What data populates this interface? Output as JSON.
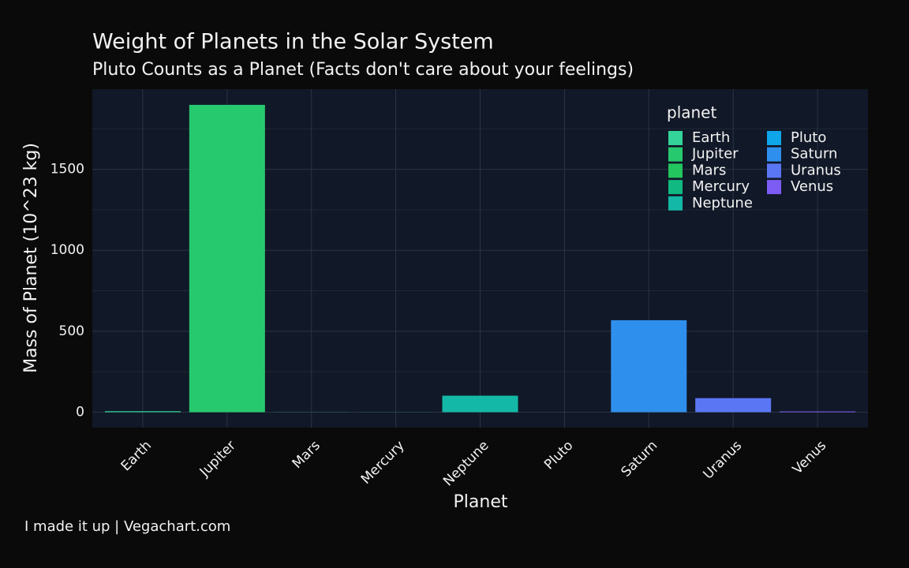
{
  "chart_data": {
    "type": "bar",
    "title": "Weight of Planets in the Solar System",
    "subtitle": "Pluto Counts as a Planet (Facts don't care about your feelings)",
    "x_label": "Planet",
    "y_label": "Mass of Planet (10^23 kg)",
    "footer": "I made it up | Vegachart.com",
    "legend_title": "planet",
    "categories": [
      "Earth",
      "Jupiter",
      "Mars",
      "Mercury",
      "Neptune",
      "Pluto",
      "Saturn",
      "Uranus",
      "Venus"
    ],
    "values": [
      5.97,
      1898,
      0.642,
      0.33,
      102,
      0.0146,
      568,
      86.8,
      4.87
    ],
    "colors": [
      "#34d399",
      "#27c96f",
      "#22c55e",
      "#10b981",
      "#14b8a6",
      "#0ea5e9",
      "#2f8fec",
      "#5b76f5",
      "#7c5cf5"
    ],
    "ylim": [
      -95,
      1995
    ],
    "yticks": [
      0,
      500,
      1000,
      1500
    ],
    "minor_yticks": [
      250,
      750,
      1250,
      1750
    ],
    "grid": true
  }
}
